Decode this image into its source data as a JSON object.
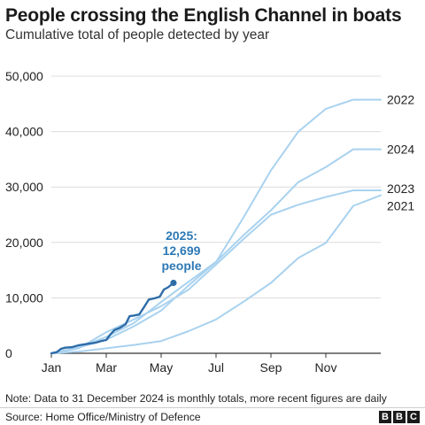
{
  "chart_data": {
    "type": "line",
    "title": "People crossing the English Channel in boats",
    "subtitle": "Cumulative total of people detected by year",
    "xlabel": "",
    "ylabel": "",
    "x_ticks": [
      "Jan",
      "Mar",
      "May",
      "Jul",
      "Sep",
      "Nov"
    ],
    "y_ticks": [
      "0",
      "10,000",
      "20,000",
      "30,000",
      "40,000",
      "50,000"
    ],
    "ylim": [
      0,
      50000
    ],
    "grid": true,
    "series": [
      {
        "name": "2022",
        "color": "#a9d2ef",
        "x": [
          0,
          1,
          2,
          3,
          4,
          5,
          6,
          7,
          8,
          9,
          10,
          11,
          12
        ],
        "y": [
          0,
          1050,
          2450,
          4850,
          7700,
          12250,
          16450,
          24500,
          33000,
          40000,
          44100,
          45750,
          45750
        ]
      },
      {
        "name": "2024",
        "color": "#a9d2ef",
        "x": [
          0,
          1,
          2,
          3,
          4,
          5,
          6,
          7,
          8,
          9,
          10,
          11,
          12
        ],
        "y": [
          0,
          1000,
          2950,
          5450,
          9250,
          12900,
          16500,
          21300,
          25800,
          30900,
          33600,
          36800,
          36800
        ]
      },
      {
        "name": "2023",
        "color": "#a9d2ef",
        "x": [
          0,
          1,
          2,
          3,
          4,
          5,
          6,
          7,
          8,
          9,
          10,
          11,
          12
        ],
        "y": [
          0,
          900,
          3800,
          6100,
          8500,
          11500,
          16000,
          20600,
          25000,
          26800,
          28200,
          29400,
          29400
        ]
      },
      {
        "name": "2021",
        "color": "#a9d2ef",
        "x": [
          0,
          1,
          2,
          3,
          4,
          5,
          6,
          7,
          8,
          9,
          10,
          11,
          12
        ],
        "y": [
          0,
          300,
          900,
          1500,
          2200,
          4000,
          6100,
          9300,
          12700,
          17200,
          19900,
          26600,
          28500
        ]
      },
      {
        "name": "2025",
        "color": "#2e6ca8",
        "label": [
          "2025:",
          "12,699",
          "people"
        ],
        "x": [
          0,
          0.2,
          0.35,
          0.5,
          0.75,
          1.0,
          1.3,
          1.6,
          1.85,
          2.0,
          2.15,
          2.3,
          2.5,
          2.7,
          2.85,
          3.0,
          3.2,
          3.4,
          3.55,
          3.75,
          3.95,
          4.1,
          4.25,
          4.45
        ],
        "y": [
          0,
          200,
          800,
          1000,
          1100,
          1450,
          1700,
          1900,
          2250,
          2400,
          3400,
          4200,
          4600,
          5200,
          6700,
          6800,
          7000,
          8500,
          9700,
          9900,
          10200,
          11500,
          11900,
          12699
        ]
      }
    ]
  },
  "note": "Note: Data to 31 December 2024 is monthly totals, more recent figures are daily",
  "source": "Source: Home Office/Ministry of Defence",
  "logo": [
    "B",
    "B",
    "C"
  ]
}
